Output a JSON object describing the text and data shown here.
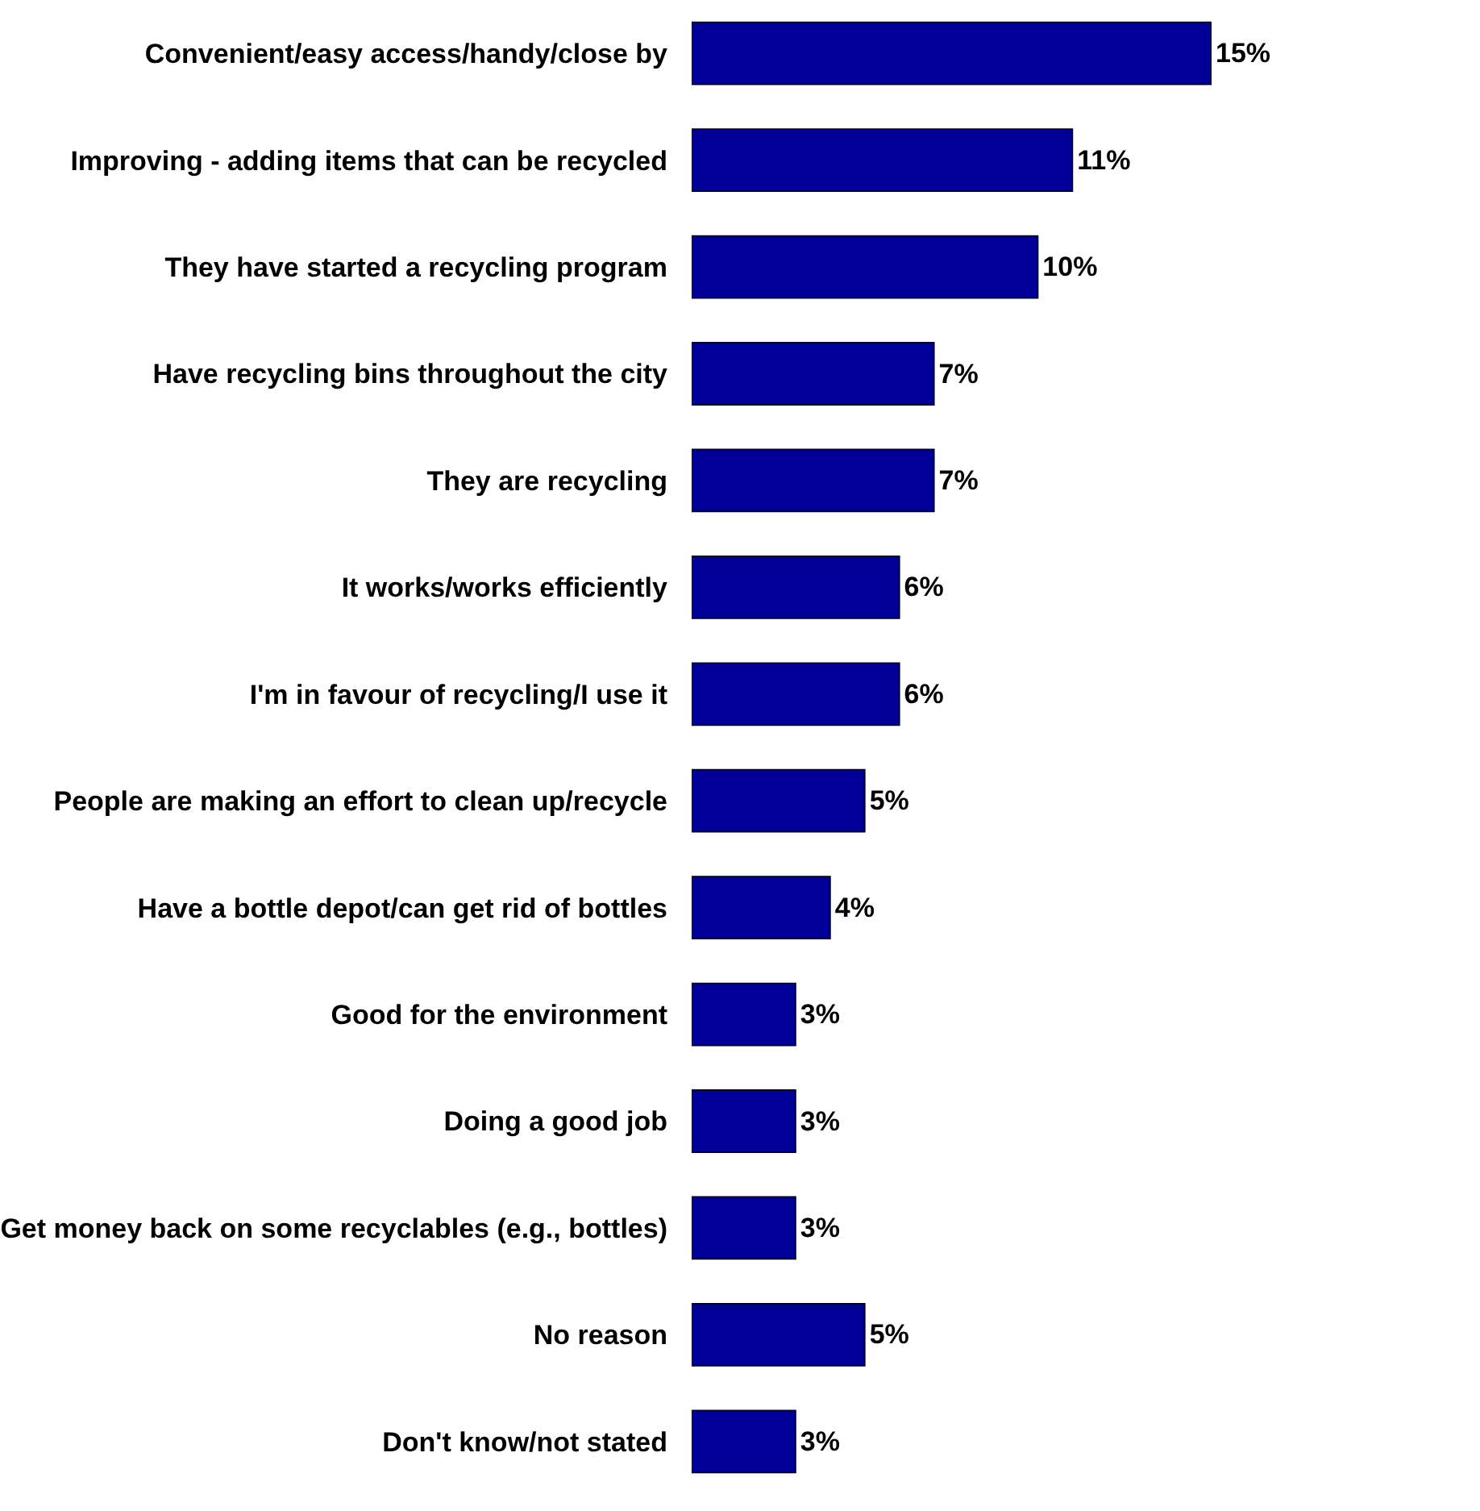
{
  "chart_data": {
    "type": "bar",
    "orientation": "horizontal",
    "categories": [
      "Convenient/easy access/handy/close by",
      "Improving - adding items that can be recycled",
      "They have started a recycling program",
      "Have recycling bins throughout the city",
      "They are recycling",
      "It works/works efficiently",
      "I'm in favour of recycling/I use it",
      "People are making an effort to clean up/recycle",
      "Have a bottle depot/can get rid of bottles",
      "Good for the environment",
      "Doing a good job",
      "Get money back on some recyclables (e.g., bottles)",
      "No reason",
      "Don't know/not stated"
    ],
    "values": [
      15,
      11,
      10,
      7,
      7,
      6,
      6,
      5,
      4,
      3,
      3,
      3,
      5,
      3
    ],
    "value_labels": [
      "15%",
      "11%",
      "10%",
      "7%",
      "7%",
      "6%",
      "6%",
      "5%",
      "4%",
      "3%",
      "3%",
      "3%",
      "5%",
      "3%"
    ],
    "color": "#000099"
  }
}
